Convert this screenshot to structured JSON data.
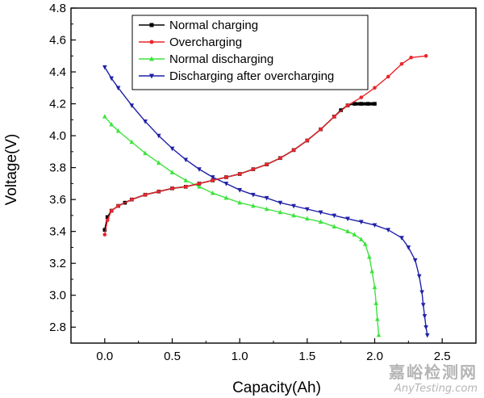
{
  "chart_data": {
    "type": "line",
    "xlabel": "Capacity(Ah)",
    "ylabel": "Voltage(V)",
    "xlim": [
      -0.25,
      2.75
    ],
    "ylim": [
      2.7,
      4.8
    ],
    "xticks": [
      "0.0",
      "0.5",
      "1.0",
      "1.5",
      "2.0",
      "2.5"
    ],
    "yticks": [
      "2.8",
      "3.0",
      "3.2",
      "3.4",
      "3.6",
      "3.8",
      "4.0",
      "4.2",
      "4.4",
      "4.6",
      "4.8"
    ],
    "grid": false,
    "legend_position": "top-center",
    "series": [
      {
        "name": "Normal charging",
        "color": "#000000",
        "marker": "square",
        "x": [
          0.0,
          0.02,
          0.05,
          0.1,
          0.15,
          0.2,
          0.3,
          0.4,
          0.5,
          0.6,
          0.7,
          0.8,
          0.9,
          1.0,
          1.1,
          1.2,
          1.3,
          1.4,
          1.5,
          1.6,
          1.7,
          1.75,
          1.8,
          1.85,
          1.9,
          1.95,
          2.0
        ],
        "y": [
          3.41,
          3.49,
          3.53,
          3.56,
          3.58,
          3.6,
          3.63,
          3.65,
          3.67,
          3.68,
          3.7,
          3.72,
          3.74,
          3.76,
          3.79,
          3.82,
          3.86,
          3.91,
          3.97,
          4.04,
          4.12,
          4.16,
          4.19,
          4.2,
          4.2,
          4.2,
          4.2
        ]
      },
      {
        "name": "Overcharging",
        "color": "#e8262c",
        "marker": "circle",
        "x": [
          0.0,
          0.02,
          0.05,
          0.1,
          0.2,
          0.3,
          0.4,
          0.5,
          0.6,
          0.7,
          0.8,
          0.9,
          1.0,
          1.1,
          1.2,
          1.3,
          1.4,
          1.5,
          1.6,
          1.7,
          1.8,
          1.9,
          2.0,
          2.1,
          2.2,
          2.27,
          2.38
        ],
        "y": [
          3.38,
          3.47,
          3.53,
          3.56,
          3.6,
          3.63,
          3.65,
          3.67,
          3.68,
          3.7,
          3.72,
          3.74,
          3.76,
          3.79,
          3.82,
          3.86,
          3.91,
          3.97,
          4.04,
          4.12,
          4.19,
          4.24,
          4.3,
          4.37,
          4.45,
          4.49,
          4.5
        ]
      },
      {
        "name": "Normal discharging",
        "color": "#3ee33e",
        "marker": "triangle-up",
        "x": [
          0.0,
          0.05,
          0.1,
          0.2,
          0.3,
          0.4,
          0.5,
          0.6,
          0.7,
          0.8,
          0.9,
          1.0,
          1.1,
          1.2,
          1.3,
          1.4,
          1.5,
          1.6,
          1.7,
          1.8,
          1.85,
          1.9,
          1.93,
          1.96,
          1.98,
          2.0,
          2.01,
          2.02,
          2.03
        ],
        "y": [
          4.12,
          4.07,
          4.03,
          3.96,
          3.89,
          3.83,
          3.77,
          3.72,
          3.68,
          3.64,
          3.61,
          3.58,
          3.56,
          3.54,
          3.52,
          3.5,
          3.48,
          3.46,
          3.43,
          3.4,
          3.38,
          3.35,
          3.32,
          3.24,
          3.15,
          3.05,
          2.95,
          2.85,
          2.75
        ]
      },
      {
        "name": "Discharging after overcharging",
        "color": "#1f20a8",
        "marker": "triangle-down",
        "x": [
          0.0,
          0.05,
          0.1,
          0.2,
          0.3,
          0.4,
          0.5,
          0.6,
          0.7,
          0.8,
          0.9,
          1.0,
          1.1,
          1.2,
          1.3,
          1.4,
          1.5,
          1.6,
          1.7,
          1.8,
          1.9,
          2.0,
          2.1,
          2.2,
          2.25,
          2.3,
          2.33,
          2.35,
          2.36,
          2.37,
          2.38,
          2.39
        ],
        "y": [
          4.43,
          4.36,
          4.3,
          4.19,
          4.09,
          4.0,
          3.92,
          3.85,
          3.79,
          3.74,
          3.7,
          3.66,
          3.63,
          3.61,
          3.58,
          3.56,
          3.54,
          3.52,
          3.5,
          3.48,
          3.46,
          3.44,
          3.41,
          3.36,
          3.3,
          3.22,
          3.12,
          3.02,
          2.94,
          2.87,
          2.8,
          2.75
        ]
      }
    ]
  },
  "watermark": {
    "line1": "嘉峪检测网",
    "line2": "AnyTesting.com"
  }
}
